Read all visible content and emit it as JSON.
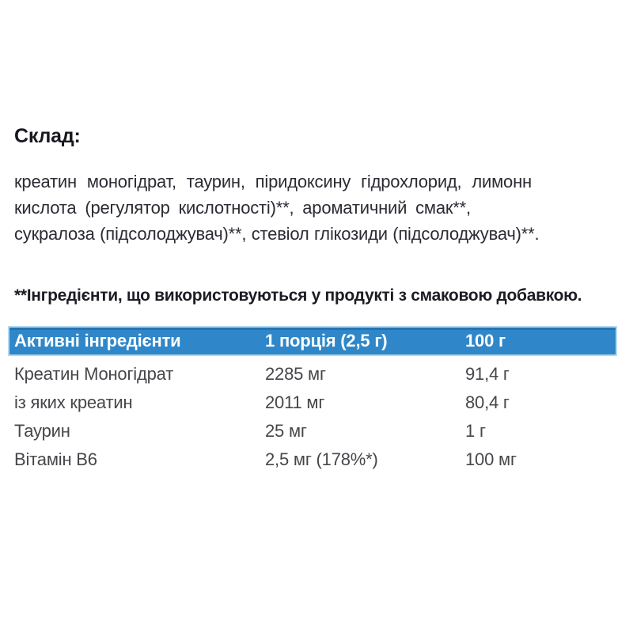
{
  "composition": {
    "heading": "Склад:",
    "lines": [
      "креатин моногідрат, таурин, піридоксину гідрохлорид, лимонн",
      "кислота (регулятор кислотності)**, ароматичний смак**,",
      "сукралоза (підсолоджувач)**, стевіол глікозиди (підсолоджувач)**."
    ],
    "footnote": "**Інгредієнти, що використовуються у продукті з смаковою добавкою."
  },
  "table": {
    "headers": [
      "Активні інгредієнти",
      "1 порція (2,5 г)",
      "100 г"
    ],
    "rows": [
      [
        "Креатин Моногідрат",
        "2285 мг",
        "91,4 г"
      ],
      [
        "із яких креатин",
        "2011 мг",
        "80,4 г"
      ],
      [
        "Таурин",
        "25 мг",
        "1 г"
      ],
      [
        "Вітамін B6",
        "2,5 мг (178%*)",
        "100 мг"
      ]
    ],
    "colors": {
      "header_bg": "#2f87c9",
      "header_border": "#b3d9f2",
      "header_text": "#ffffff",
      "body_text": "#46464b"
    }
  }
}
